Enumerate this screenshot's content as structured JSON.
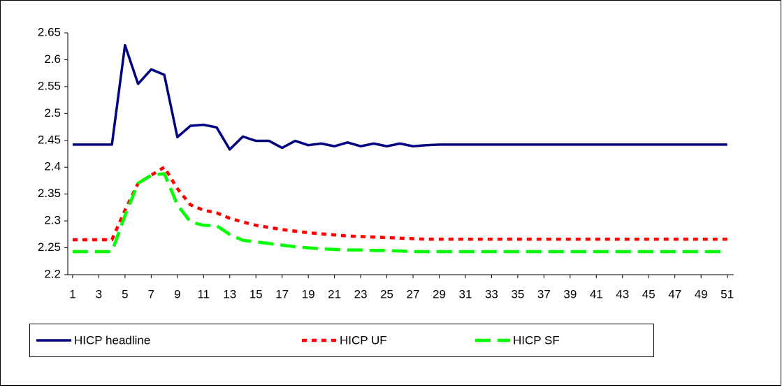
{
  "chart_data": {
    "type": "line",
    "x": [
      1,
      2,
      3,
      4,
      5,
      6,
      7,
      8,
      9,
      10,
      11,
      12,
      13,
      14,
      15,
      16,
      17,
      18,
      19,
      20,
      21,
      22,
      23,
      24,
      25,
      26,
      27,
      28,
      29,
      30,
      31,
      32,
      33,
      34,
      35,
      36,
      37,
      38,
      39,
      40,
      41,
      42,
      43,
      44,
      45,
      46,
      47,
      48,
      49,
      50,
      51
    ],
    "xlim": [
      0.63,
      51.5
    ],
    "xticks": [
      1,
      3,
      5,
      7,
      9,
      11,
      13,
      15,
      17,
      19,
      21,
      23,
      25,
      27,
      29,
      31,
      33,
      35,
      37,
      39,
      41,
      43,
      45,
      47,
      49,
      51
    ],
    "ylim": [
      2.2,
      2.65
    ],
    "yticks": [
      2.2,
      2.25,
      2.3,
      2.35,
      2.4,
      2.45,
      2.5,
      2.55,
      2.6,
      2.65
    ],
    "grid": false,
    "legend": "bottom",
    "series": [
      {
        "name": "HICP headline",
        "color": "#000080",
        "style": "solid",
        "values": [
          2.442,
          2.442,
          2.442,
          2.442,
          2.627,
          2.555,
          2.582,
          2.572,
          2.456,
          2.477,
          2.479,
          2.474,
          2.433,
          2.457,
          2.449,
          2.449,
          2.436,
          2.449,
          2.441,
          2.444,
          2.439,
          2.446,
          2.439,
          2.444,
          2.439,
          2.444,
          2.439,
          2.441,
          2.442,
          2.442,
          2.442,
          2.442,
          2.442,
          2.442,
          2.442,
          2.442,
          2.442,
          2.442,
          2.442,
          2.442,
          2.442,
          2.442,
          2.442,
          2.442,
          2.442,
          2.442,
          2.442,
          2.442,
          2.442,
          2.442,
          2.442
        ]
      },
      {
        "name": "HICP UF",
        "color": "#ff0000",
        "style": "dotted",
        "values": [
          2.265,
          2.265,
          2.265,
          2.265,
          2.32,
          2.37,
          2.385,
          2.4,
          2.36,
          2.33,
          2.32,
          2.315,
          2.305,
          2.298,
          2.292,
          2.288,
          2.284,
          2.281,
          2.278,
          2.276,
          2.274,
          2.272,
          2.271,
          2.27,
          2.269,
          2.268,
          2.267,
          2.266,
          2.266,
          2.266,
          2.266,
          2.266,
          2.266,
          2.266,
          2.266,
          2.266,
          2.266,
          2.266,
          2.266,
          2.266,
          2.266,
          2.266,
          2.266,
          2.266,
          2.266,
          2.266,
          2.266,
          2.266,
          2.266,
          2.266,
          2.266
        ]
      },
      {
        "name": "HICP SF",
        "color": "#00ff00",
        "style": "dashed",
        "values": [
          2.243,
          2.243,
          2.243,
          2.243,
          2.31,
          2.37,
          2.385,
          2.388,
          2.33,
          2.298,
          2.292,
          2.291,
          2.275,
          2.264,
          2.261,
          2.258,
          2.255,
          2.252,
          2.25,
          2.248,
          2.247,
          2.246,
          2.246,
          2.245,
          2.245,
          2.244,
          2.243,
          2.243,
          2.243,
          2.243,
          2.243,
          2.243,
          2.243,
          2.243,
          2.243,
          2.243,
          2.243,
          2.243,
          2.243,
          2.243,
          2.243,
          2.243,
          2.243,
          2.243,
          2.243,
          2.243,
          2.243,
          2.243,
          2.243,
          2.243,
          2.243
        ]
      }
    ]
  }
}
